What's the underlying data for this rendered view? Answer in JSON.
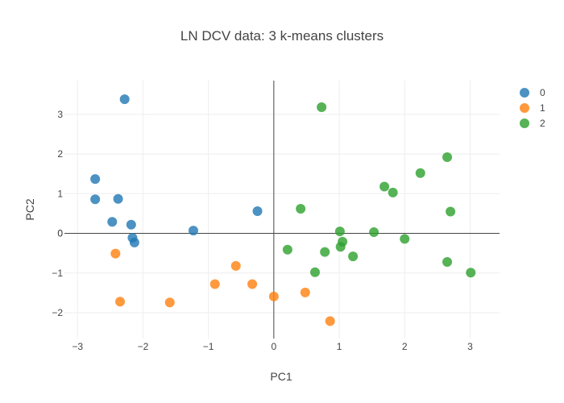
{
  "chart_data": {
    "type": "scatter",
    "title": "LN DCV data: 3 k-means clusters",
    "xlabel": "PC1",
    "ylabel": "PC2",
    "xlim": [
      -3.2,
      3.45
    ],
    "ylim": [
      -2.65,
      3.85
    ],
    "xticks": [
      -3,
      -2,
      -1,
      0,
      1,
      2,
      3
    ],
    "yticks": [
      -2,
      -1,
      0,
      1,
      2,
      3
    ],
    "grid": true,
    "zeroline": true,
    "legend_position": "top-right",
    "series": [
      {
        "name": "0",
        "color": "#1f77b4",
        "points": [
          [
            -2.28,
            3.38
          ],
          [
            -2.73,
            1.37
          ],
          [
            -2.73,
            0.86
          ],
          [
            -2.38,
            0.87
          ],
          [
            -2.47,
            0.29
          ],
          [
            -2.18,
            0.22
          ],
          [
            -2.16,
            -0.11
          ],
          [
            -2.13,
            -0.23
          ],
          [
            -1.23,
            0.07
          ],
          [
            -0.25,
            0.56
          ]
        ]
      },
      {
        "name": "1",
        "color": "#ff7f0e",
        "points": [
          [
            -2.42,
            -0.51
          ],
          [
            -2.35,
            -1.72
          ],
          [
            -1.59,
            -1.74
          ],
          [
            -0.9,
            -1.28
          ],
          [
            -0.58,
            -0.82
          ],
          [
            -0.33,
            -1.28
          ],
          [
            0.0,
            -1.59
          ],
          [
            0.48,
            -1.49
          ],
          [
            0.86,
            -2.21
          ]
        ]
      },
      {
        "name": "2",
        "color": "#2ca02c",
        "points": [
          [
            0.73,
            3.18
          ],
          [
            0.41,
            0.62
          ],
          [
            0.21,
            -0.41
          ],
          [
            0.63,
            -0.98
          ],
          [
            0.78,
            -0.47
          ],
          [
            1.01,
            0.05
          ],
          [
            1.02,
            -0.34
          ],
          [
            1.05,
            -0.21
          ],
          [
            1.21,
            -0.58
          ],
          [
            1.53,
            0.03
          ],
          [
            1.69,
            1.18
          ],
          [
            1.82,
            1.03
          ],
          [
            2.0,
            -0.14
          ],
          [
            2.24,
            1.52
          ],
          [
            2.65,
            1.92
          ],
          [
            2.65,
            -0.72
          ],
          [
            2.7,
            0.55
          ],
          [
            3.01,
            -0.99
          ]
        ]
      }
    ]
  }
}
